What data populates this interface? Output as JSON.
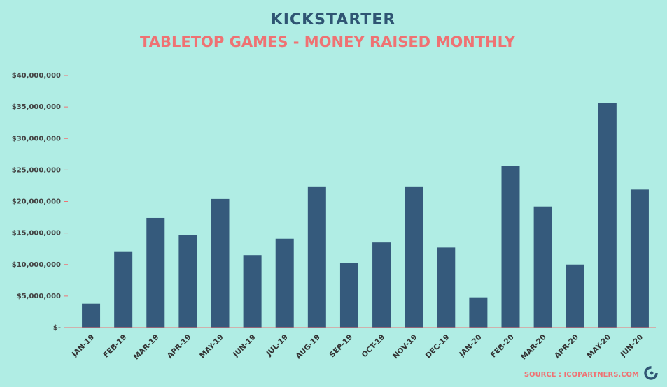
{
  "chart_data": {
    "type": "bar",
    "brand": "KICKSTARTER",
    "title": "TABLETOP GAMES - MONEY RAISED MONTHLY",
    "source": "SOURCE : ICOPARTNERS.COM",
    "categories": [
      "JAN-19",
      "FEB-19",
      "MAR-19",
      "APR-19",
      "MAY-19",
      "JUN-19",
      "JUL-19",
      "AUG-19",
      "SEP-19",
      "OCT-19",
      "NOV-19",
      "DEC-19",
      "JAN-20",
      "FEB-20",
      "MAR-20",
      "APR-20",
      "MAY-20",
      "JUN-20"
    ],
    "values": [
      3800000,
      12000000,
      17400000,
      14700000,
      20400000,
      11500000,
      14100000,
      22400000,
      10200000,
      13500000,
      22400000,
      12700000,
      4800000,
      25700000,
      19200000,
      10000000,
      35600000,
      21900000
    ],
    "color": "#355a7c",
    "ylim": [
      0,
      40000000
    ],
    "yticks": [
      {
        "value": 0,
        "label": "$-"
      },
      {
        "value": 5000000,
        "label": "$5,000,000"
      },
      {
        "value": 10000000,
        "label": "$10,000,000"
      },
      {
        "value": 15000000,
        "label": "$15,000,000"
      },
      {
        "value": 20000000,
        "label": "$20,000,000"
      },
      {
        "value": 25000000,
        "label": "$25,000,000"
      },
      {
        "value": 30000000,
        "label": "$30,000,000"
      },
      {
        "value": 35000000,
        "label": "$35,000,000"
      },
      {
        "value": 40000000,
        "label": "$40,000,000"
      }
    ],
    "grid": false
  }
}
